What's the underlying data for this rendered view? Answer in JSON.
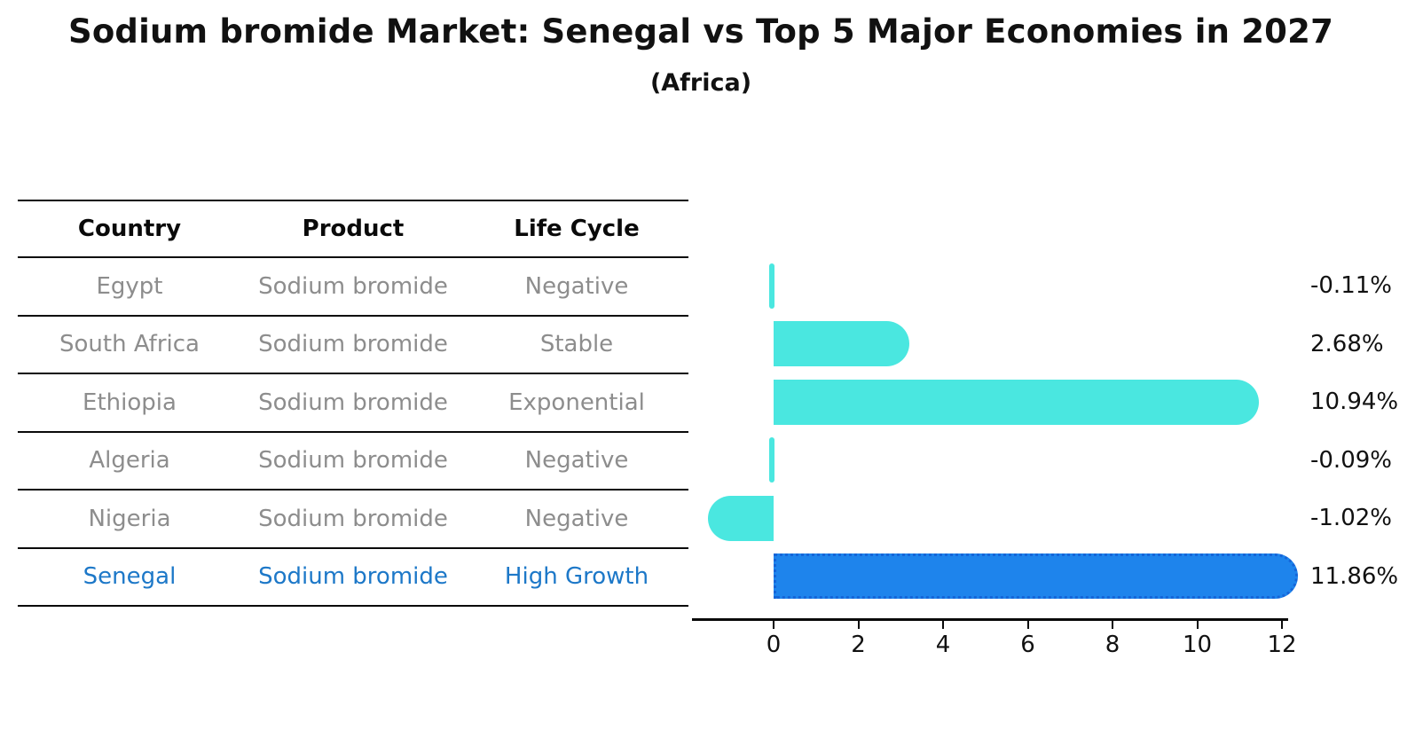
{
  "title": "Sodium bromide Market: Senegal vs Top 5 Major Economies in 2027",
  "subtitle": "(Africa)",
  "table": {
    "headers": [
      "Country",
      "Product",
      "Life Cycle"
    ],
    "rows": [
      {
        "country": "Egypt",
        "product": "Sodium bromide",
        "life_cycle": "Negative",
        "highlight": false
      },
      {
        "country": "South Africa",
        "product": "Sodium bromide",
        "life_cycle": "Stable",
        "highlight": false
      },
      {
        "country": "Ethiopia",
        "product": "Sodium bromide",
        "life_cycle": "Exponential",
        "highlight": false
      },
      {
        "country": "Algeria",
        "product": "Sodium bromide",
        "life_cycle": "Negative",
        "highlight": false
      },
      {
        "country": "Nigeria",
        "product": "Sodium bromide",
        "life_cycle": "Negative",
        "highlight": false
      },
      {
        "country": "Senegal",
        "product": "Sodium bromide",
        "life_cycle": "High Growth",
        "highlight": true
      }
    ]
  },
  "chart_data": {
    "type": "bar",
    "orientation": "horizontal",
    "title": "Sodium bromide Market: Senegal vs Top 5 Major Economies in 2027",
    "subtitle": "(Africa)",
    "categories": [
      "Egypt",
      "South Africa",
      "Ethiopia",
      "Algeria",
      "Nigeria",
      "Senegal"
    ],
    "values": [
      -0.11,
      2.68,
      10.94,
      -0.09,
      -1.02,
      11.86
    ],
    "value_labels": [
      "-0.11%",
      "2.68%",
      "10.94%",
      "-0.09%",
      "-1.02%",
      "11.86%"
    ],
    "x_ticks": [
      0,
      2,
      4,
      6,
      8,
      10,
      12
    ],
    "xlim": [
      -1.7,
      12.6
    ],
    "xlabel": "",
    "ylabel": "",
    "grid": false,
    "legend": false,
    "highlight_index": 5,
    "colors": {
      "bar_default": "#4AE7E0",
      "bar_highlight": "#1E84EC",
      "bar_highlight_border": "#1565d8",
      "table_text": "#8d8d8d",
      "highlight_text": "#1d78c8",
      "axis": "#0a0a0a"
    }
  }
}
